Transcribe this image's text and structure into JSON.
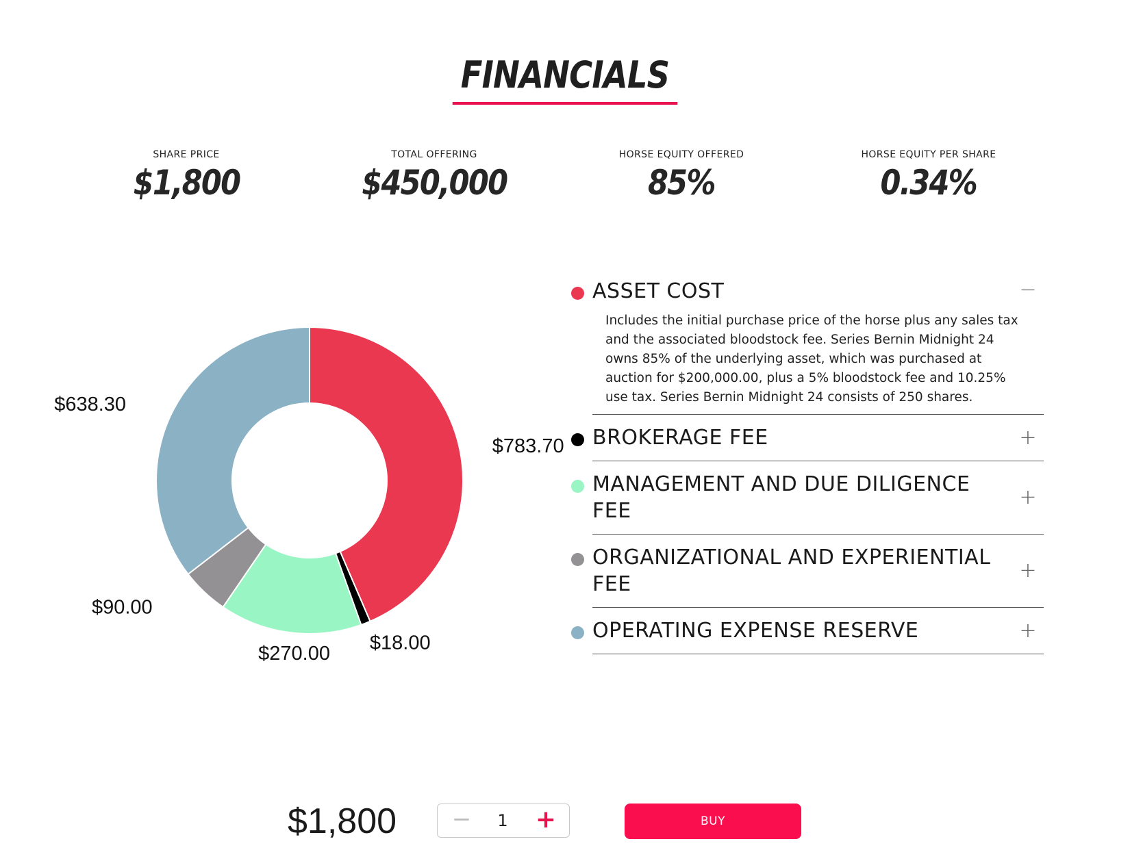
{
  "header": {
    "title": "FINANCIALS"
  },
  "stats": [
    {
      "label": "SHARE PRICE",
      "value": "$1,800"
    },
    {
      "label": "TOTAL OFFERING",
      "value": "$450,000"
    },
    {
      "label": "HORSE EQUITY OFFERED",
      "value": "85%"
    },
    {
      "label": "HORSE EQUITY PER SHARE",
      "value": "0.34%"
    }
  ],
  "chart_data": {
    "type": "pie",
    "donut": true,
    "slices": [
      {
        "name": "ASSET COST",
        "value": 783.7,
        "label": "$783.70",
        "color": "#ea3850"
      },
      {
        "name": "BROKERAGE FEE",
        "value": 18.0,
        "label": "$18.00",
        "color": "#000000"
      },
      {
        "name": "MANAGEMENT AND DUE DILIGENCE FEE",
        "value": 270.0,
        "label": "$270.00",
        "color": "#99f5c3"
      },
      {
        "name": "ORGANIZATIONAL AND EXPERIENTIAL FEE",
        "value": 90.0,
        "label": "$90.00",
        "color": "#939193"
      },
      {
        "name": "OPERATING EXPENSE RESERVE",
        "value": 638.3,
        "label": "$638.30",
        "color": "#8bb1c4"
      }
    ]
  },
  "accordion": {
    "items": [
      {
        "title": "ASSET COST",
        "color": "#ea3850",
        "toggle": "−",
        "expanded": true,
        "body": "Includes the initial purchase price of the horse plus any sales tax and the associated bloodstock fee. Series Bernin Midnight 24 owns 85% of the underlying asset, which was purchased at auction for $200,000.00, plus a 5% bloodstock fee and 10.25% use tax. Series Bernin Midnight 24 consists of 250 shares."
      },
      {
        "title": "BROKERAGE FEE",
        "color": "#000000",
        "toggle": "+",
        "expanded": false,
        "body": ""
      },
      {
        "title": "MANAGEMENT AND DUE DILIGENCE FEE",
        "color": "#99f5c3",
        "toggle": "+",
        "expanded": false,
        "body": ""
      },
      {
        "title": "ORGANIZATIONAL AND EXPERIENTIAL FEE",
        "color": "#939193",
        "toggle": "+",
        "expanded": false,
        "body": ""
      },
      {
        "title": "OPERATING EXPENSE RESERVE",
        "color": "#8bb1c4",
        "toggle": "+",
        "expanded": false,
        "body": ""
      }
    ]
  },
  "purchase": {
    "price": "$1,800",
    "quantity": "1",
    "minus": "−",
    "plus": "+",
    "buy_label": "BUY"
  }
}
